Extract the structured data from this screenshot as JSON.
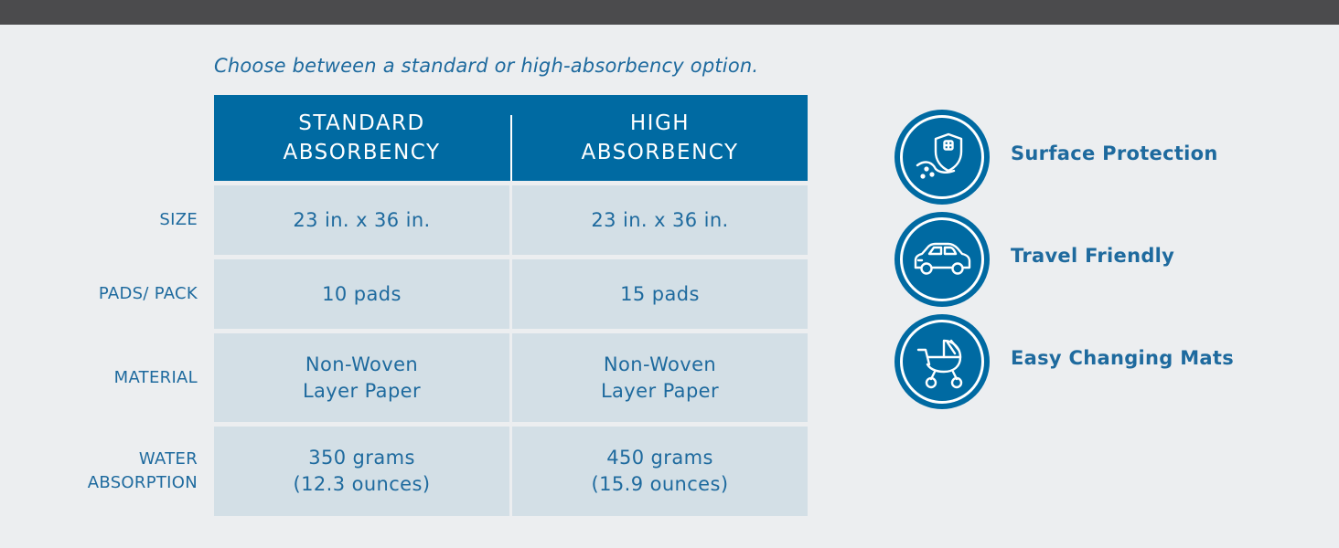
{
  "subtitle": "Choose between a standard or high-absorbency option.",
  "table": {
    "columns": [
      {
        "line1": "STANDARD",
        "line2": "ABSORBENCY"
      },
      {
        "line1": "HIGH",
        "line2": "ABSORBENCY"
      }
    ],
    "rows": [
      {
        "label_line1": "SIZE",
        "label_line2": "",
        "standard_line1": "23 in. x 36 in.",
        "standard_line2": "",
        "high_line1": "23 in. x 36 in.",
        "high_line2": ""
      },
      {
        "label_line1": "PADS/ PACK",
        "label_line2": "",
        "standard_line1": "10 pads",
        "standard_line2": "",
        "high_line1": "15 pads",
        "high_line2": ""
      },
      {
        "label_line1": "MATERIAL",
        "label_line2": "",
        "standard_line1": "Non-Woven",
        "standard_line2": "Layer Paper",
        "high_line1": "Non-Woven",
        "high_line2": "Layer Paper"
      },
      {
        "label_line1": "WATER",
        "label_line2": "ABSORPTION",
        "standard_line1": "350 grams",
        "standard_line2": "(12.3 ounces)",
        "high_line1": "450 grams",
        "high_line2": "(15.9 ounces)"
      }
    ]
  },
  "features": [
    {
      "label": "Surface Protection",
      "icon": "shield-cross-icon"
    },
    {
      "label": "Travel Friendly",
      "icon": "car-icon"
    },
    {
      "label": "Easy Changing Mats",
      "icon": "baby-stroller-icon"
    }
  ],
  "colors": {
    "accent": "#006aa2",
    "text": "#1e6a9e",
    "cell": "#d3dfe6",
    "background": "#eceef0",
    "topbar": "#4b4b4d"
  }
}
